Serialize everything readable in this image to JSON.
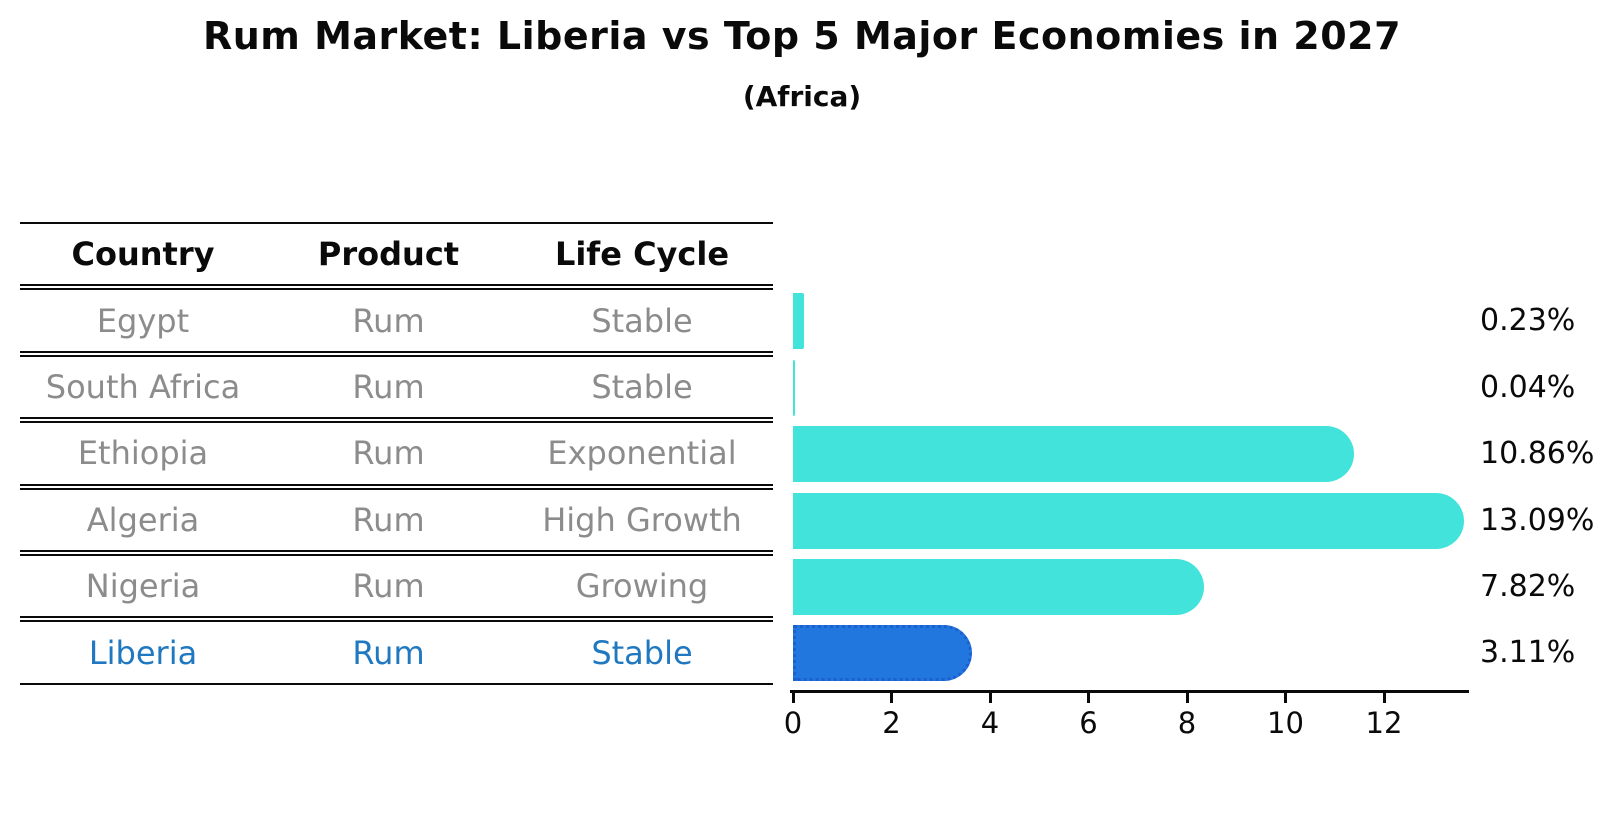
{
  "title": "Rum Market: Liberia vs Top 5 Major Economies in 2027",
  "subtitle": "(Africa)",
  "table": {
    "headers": [
      "Country",
      "Product",
      "Life Cycle"
    ],
    "rows": [
      {
        "country": "Egypt",
        "product": "Rum",
        "life_cycle": "Stable",
        "highlighted": false
      },
      {
        "country": "South Africa",
        "product": "Rum",
        "life_cycle": "Stable",
        "highlighted": false
      },
      {
        "country": "Ethiopia",
        "product": "Rum",
        "life_cycle": "Exponential",
        "highlighted": false
      },
      {
        "country": "Algeria",
        "product": "Rum",
        "life_cycle": "High Growth",
        "highlighted": false
      },
      {
        "country": "Nigeria",
        "product": "Rum",
        "life_cycle": "Growing",
        "highlighted": false
      },
      {
        "country": "Liberia",
        "product": "Rum",
        "life_cycle": "Stable",
        "highlighted": true
      }
    ]
  },
  "chart_data": {
    "type": "bar",
    "orientation": "horizontal",
    "title": "Rum Market: Liberia vs Top 5 Major Economies in 2027 (Africa)",
    "categories": [
      "Egypt",
      "South Africa",
      "Ethiopia",
      "Algeria",
      "Nigeria",
      "Liberia"
    ],
    "values": [
      0.23,
      0.04,
      10.86,
      13.09,
      7.82,
      3.11
    ],
    "value_labels": [
      "0.23%",
      "0.04%",
      "10.86%",
      "13.09%",
      "7.82%",
      "3.11%"
    ],
    "x_ticks": [
      "0",
      "2",
      "4",
      "6",
      "8",
      "10",
      "12"
    ],
    "xlim": [
      0,
      13.7
    ],
    "xlabel": "",
    "ylabel": "",
    "grid": false,
    "legend": null,
    "highlight_index": 5
  },
  "colors": {
    "background": "#ffffff",
    "bar_cyan": "#41E3DA",
    "bar_blue": "#2277DF",
    "bar_blue_border": "#1B5FD0",
    "highlight_text": "#2079C0",
    "muted_text": "#8C8C8C",
    "text": "#0a0a0a"
  }
}
